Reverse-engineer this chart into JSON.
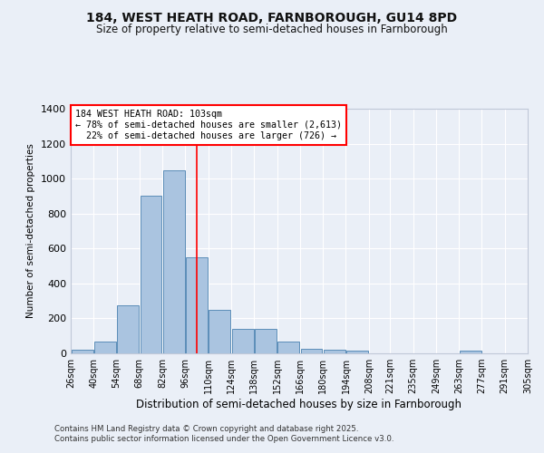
{
  "title1": "184, WEST HEATH ROAD, FARNBOROUGH, GU14 8PD",
  "title2": "Size of property relative to semi-detached houses in Farnborough",
  "xlabel": "Distribution of semi-detached houses by size in Farnborough",
  "ylabel": "Number of semi-detached properties",
  "footer1": "Contains HM Land Registry data © Crown copyright and database right 2025.",
  "footer2": "Contains public sector information licensed under the Open Government Licence v3.0.",
  "bins": [
    26,
    40,
    54,
    68,
    82,
    96,
    110,
    124,
    138,
    152,
    166,
    180,
    194,
    208,
    221,
    235,
    249,
    263,
    277,
    291,
    305
  ],
  "counts": [
    20,
    70,
    275,
    900,
    1050,
    550,
    250,
    140,
    140,
    65,
    28,
    22,
    18,
    0,
    0,
    0,
    0,
    13,
    0,
    0
  ],
  "bar_color": "#aac4e0",
  "bar_edge_color": "#5b8db8",
  "bg_color": "#eaeff7",
  "grid_color": "#ffffff",
  "redline_x": 103,
  "annotation_text": "184 WEST HEATH ROAD: 103sqm\n← 78% of semi-detached houses are smaller (2,613)\n  22% of semi-detached houses are larger (726) →",
  "ylim": [
    0,
    1400
  ],
  "yticks": [
    0,
    200,
    400,
    600,
    800,
    1000,
    1200,
    1400
  ]
}
